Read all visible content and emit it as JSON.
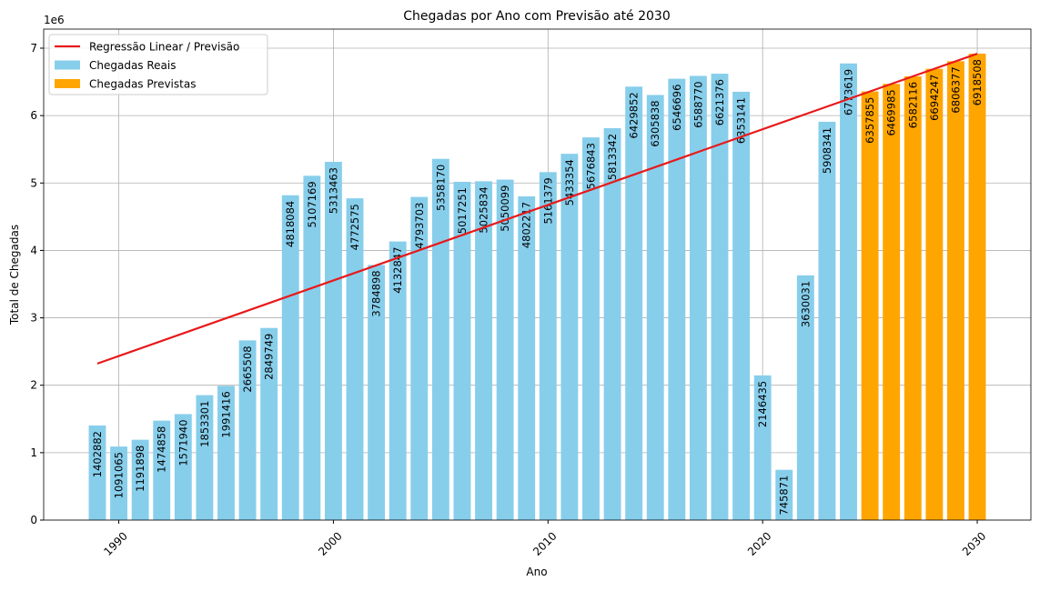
{
  "chart_data": {
    "type": "bar",
    "title": "Chegadas por Ano com Previsão até 2030",
    "x_label": "Ano",
    "y_label": "Total de Chegadas",
    "y_offset_label": "1e6",
    "xlim": [
      1986.5,
      2032.5
    ],
    "xticks": [
      1990,
      2000,
      2010,
      2020,
      2030
    ],
    "ylim": [
      0,
      7283000
    ],
    "yticks": [
      {
        "value": 0,
        "label": "0"
      },
      {
        "value": 1000000,
        "label": "1"
      },
      {
        "value": 2000000,
        "label": "2"
      },
      {
        "value": 3000000,
        "label": "3"
      },
      {
        "value": 4000000,
        "label": "4"
      },
      {
        "value": 5000000,
        "label": "5"
      },
      {
        "value": 6000000,
        "label": "6"
      },
      {
        "value": 7000000,
        "label": "7"
      }
    ],
    "grid": true,
    "legend": "upper-left",
    "series": [
      {
        "name": "Regressão Linear / Previsão",
        "type": "line",
        "color": "#e8191a",
        "x": [
          1989,
          2030
        ],
        "values": [
          2321137,
          6918508
        ]
      },
      {
        "name": "Chegadas Reais",
        "type": "bar",
        "color": "#87ceeb",
        "x": [
          1989,
          1990,
          1991,
          1992,
          1993,
          1994,
          1995,
          1996,
          1997,
          1998,
          1999,
          2000,
          2001,
          2002,
          2003,
          2004,
          2005,
          2006,
          2007,
          2008,
          2009,
          2010,
          2011,
          2012,
          2013,
          2014,
          2015,
          2016,
          2017,
          2018,
          2019,
          2020,
          2021,
          2022,
          2023,
          2024
        ],
        "values": [
          1402882,
          1091065,
          1191898,
          1474858,
          1571940,
          1853301,
          1991416,
          2665508,
          2849749,
          4818084,
          5107169,
          5313463,
          4772575,
          3784898,
          4132847,
          4793703,
          5358170,
          5017251,
          5025834,
          5050099,
          4802217,
          5161379,
          5433354,
          5676843,
          5813342,
          6429852,
          6305838,
          6546696,
          6588770,
          6621376,
          6353141,
          2146435,
          745871,
          3630031,
          5908341,
          6773619
        ]
      },
      {
        "name": "Chegadas Previstas",
        "type": "bar",
        "color": "#ffa500",
        "x": [
          2025,
          2026,
          2027,
          2028,
          2029,
          2030
        ],
        "values": [
          6357855,
          6469985,
          6582116,
          6694247,
          6806377,
          6918508
        ]
      }
    ]
  }
}
